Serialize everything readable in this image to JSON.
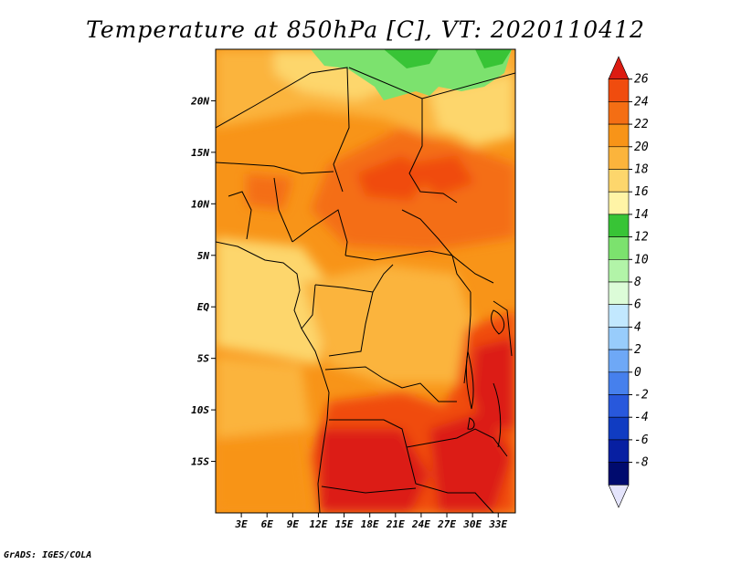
{
  "title": "Temperature at 850hPa [C], VT: 2020110412",
  "footer": "GrADS: IGES/COLA",
  "map": {
    "lon_range": [
      0,
      35
    ],
    "lat_range": [
      -20,
      25
    ],
    "lat_ticks": [
      {
        "lat": 20,
        "label": "20N"
      },
      {
        "lat": 15,
        "label": "15N"
      },
      {
        "lat": 10,
        "label": "10N"
      },
      {
        "lat": 5,
        "label": "5N"
      },
      {
        "lat": 0,
        "label": "EQ"
      },
      {
        "lat": -5,
        "label": "5S"
      },
      {
        "lat": -10,
        "label": "10S"
      },
      {
        "lat": -15,
        "label": "15S"
      }
    ],
    "lon_ticks": [
      {
        "lon": 3,
        "label": "3E"
      },
      {
        "lon": 6,
        "label": "6E"
      },
      {
        "lon": 9,
        "label": "9E"
      },
      {
        "lon": 12,
        "label": "12E"
      },
      {
        "lon": 15,
        "label": "15E"
      },
      {
        "lon": 18,
        "label": "18E"
      },
      {
        "lon": 21,
        "label": "21E"
      },
      {
        "lon": 24,
        "label": "24E"
      },
      {
        "lon": 27,
        "label": "27E"
      },
      {
        "lon": 30,
        "label": "30E"
      },
      {
        "lon": 33,
        "label": "33E"
      }
    ]
  },
  "colorbar": {
    "levels": [
      26,
      24,
      22,
      20,
      18,
      16,
      14,
      12,
      10,
      8,
      6,
      4,
      2,
      0,
      -2,
      -4,
      -6,
      -8
    ],
    "colors_top_to_bottom": [
      "#dc1c12",
      "#f04c0e",
      "#f46e14",
      "#f89418",
      "#fbb43c",
      "#fdd66c",
      "#fff4a6",
      "#38c436",
      "#7ce26e",
      "#b2f4a8",
      "#dcfcd8",
      "#c2e8fe",
      "#98ccfb",
      "#6ea8f6",
      "#4680ed",
      "#2858dc",
      "#103cc2",
      "#071fa2",
      "#000b6e",
      "#e4e4fc"
    ]
  }
}
